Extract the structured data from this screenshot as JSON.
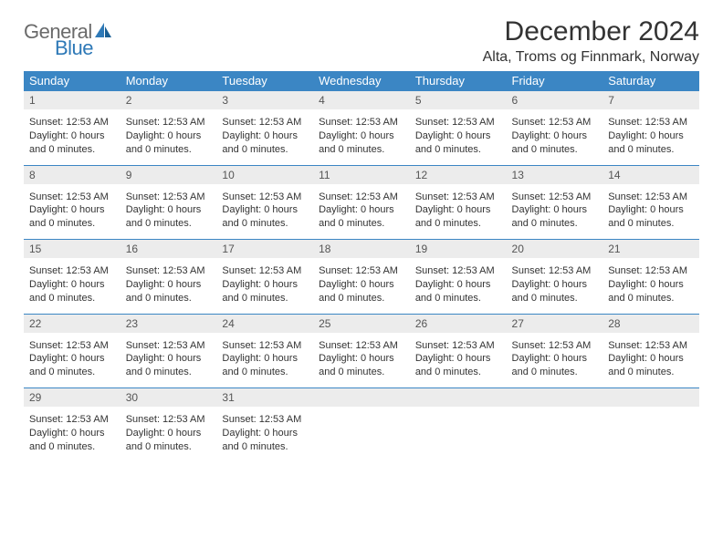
{
  "brand": {
    "part1": "General",
    "part2": "Blue"
  },
  "title": "December 2024",
  "location": "Alta, Troms og Finnmark, Norway",
  "colors": {
    "header_bg": "#3b86c4",
    "header_fg": "#ffffff",
    "daynum_bg": "#ececec",
    "rule": "#3b86c4",
    "brand_gray": "#6a6a6a",
    "brand_blue": "#2e79b7"
  },
  "day_names": [
    "Sunday",
    "Monday",
    "Tuesday",
    "Wednesday",
    "Thursday",
    "Friday",
    "Saturday"
  ],
  "cell": {
    "sunset_label": "Sunset:",
    "sunset_value": "12:53 AM",
    "daylight_label": "Daylight:",
    "daylight_value": "0 hours and 0 minutes."
  },
  "weeks": [
    [
      1,
      2,
      3,
      4,
      5,
      6,
      7
    ],
    [
      8,
      9,
      10,
      11,
      12,
      13,
      14
    ],
    [
      15,
      16,
      17,
      18,
      19,
      20,
      21
    ],
    [
      22,
      23,
      24,
      25,
      26,
      27,
      28
    ],
    [
      29,
      30,
      31,
      null,
      null,
      null,
      null
    ]
  ]
}
